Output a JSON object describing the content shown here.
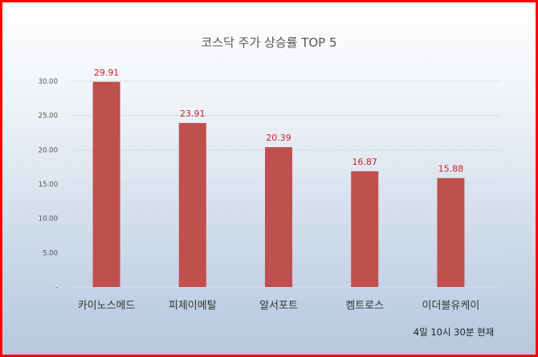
{
  "chart_data": {
    "type": "bar",
    "title": "코스닥 주가 상승률 TOP 5",
    "categories": [
      "카이노스메드",
      "피제이메탈",
      "알서포트",
      "켐트로스",
      "이더블유케이"
    ],
    "values": [
      29.91,
      23.91,
      20.39,
      16.87,
      15.88
    ],
    "data_labels": [
      "29.91",
      "23.91",
      "20.39",
      "16.87",
      "15.88"
    ],
    "ylim": [
      0,
      30
    ],
    "yticks": [
      "-",
      "5.00",
      "10.00",
      "15.00",
      "20.00",
      "25.00",
      "30.00"
    ],
    "grid": true,
    "bar_color": "#c0504d",
    "label_color": "#d0202a",
    "xlabel": "",
    "ylabel": ""
  },
  "note": "4일 10시  30분 현재",
  "border_color": "#ff0000"
}
